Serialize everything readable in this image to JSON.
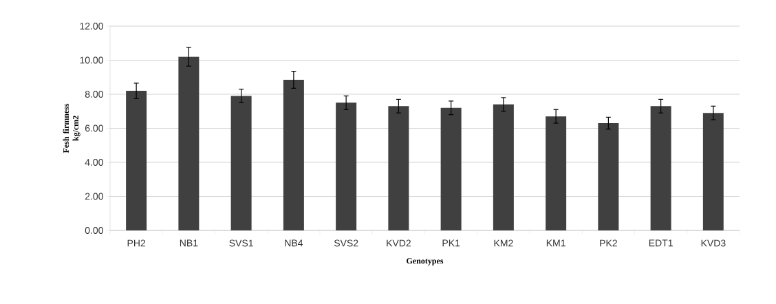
{
  "chart_data": {
    "type": "bar",
    "xlabel": "Genotypes",
    "ylabel": "Fesh firmness kg/cm2",
    "categories": [
      "PH2",
      "NB1",
      "SVS1",
      "NB4",
      "SVS2",
      "KVD2",
      "PK1",
      "KM2",
      "KM1",
      "PK2",
      "EDT1",
      "KVD3"
    ],
    "values": [
      8.2,
      10.2,
      7.9,
      8.85,
      7.5,
      7.3,
      7.2,
      7.4,
      6.7,
      6.3,
      7.3,
      6.9
    ],
    "errors": [
      0.45,
      0.55,
      0.4,
      0.5,
      0.4,
      0.4,
      0.4,
      0.4,
      0.4,
      0.35,
      0.4,
      0.4
    ],
    "color": "#404040",
    "ylim": [
      0,
      12
    ],
    "yticks": [
      {
        "value": 0,
        "label": "0.00"
      },
      {
        "value": 2,
        "label": "2.00"
      },
      {
        "value": 4,
        "label": "4.00"
      },
      {
        "value": 6,
        "label": "6.00"
      },
      {
        "value": 8,
        "label": "8.00"
      },
      {
        "value": 10,
        "label": "10.00"
      },
      {
        "value": 12,
        "label": "12.00"
      }
    ],
    "grid": "y"
  }
}
